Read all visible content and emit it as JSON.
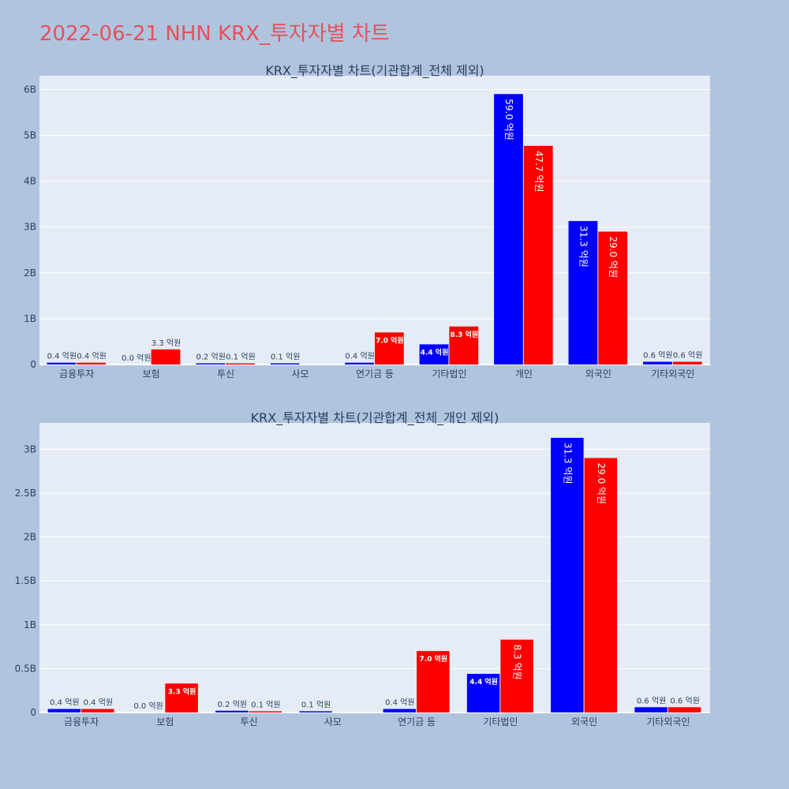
{
  "page_title": "2022-06-21 NHN KRX_투자자별 차트",
  "colors": {
    "buy": "#0000ff",
    "sell": "#ff0000",
    "plot_bg": "#e5ecf6",
    "page_bg": "#b0c4de",
    "title": "#e8505b"
  },
  "chart_data": [
    {
      "type": "bar",
      "title": "KRX_투자자별 차트(기관합계_전체 제외)",
      "categories": [
        "금융투자",
        "보험",
        "투신",
        "사모",
        "연기금 등",
        "기타법인",
        "개인",
        "외국인",
        "기타외국인"
      ],
      "series": [
        {
          "values": [
            0.04,
            0.0,
            0.02,
            0.01,
            0.04,
            0.44,
            5.9,
            3.13,
            0.06
          ],
          "labels": [
            "0.4 억원",
            "0.0 억원",
            "0.2 억원",
            "0.1 억원",
            "0.4 억원",
            "4.4 억원",
            "59.0 억원",
            "31.3 억원",
            "0.6 억원"
          ]
        },
        {
          "values": [
            0.04,
            0.33,
            0.01,
            0,
            0.7,
            0.83,
            4.77,
            2.9,
            0.06
          ],
          "labels": [
            "0.4 억원",
            "3.3 억원",
            "0.1 억원",
            "",
            "7.0 억원",
            "8.3 억원",
            "47.7 억원",
            "29.0 억원",
            "0.6 억원"
          ]
        }
      ],
      "yticks": [
        "0",
        "1B",
        "2B",
        "3B",
        "4B",
        "5B",
        "6B"
      ],
      "ylim": [
        0,
        6.3
      ],
      "grid": true
    },
    {
      "type": "bar",
      "title": "KRX_투자자별 차트(기관합계_전체_개인 제외)",
      "categories": [
        "금융투자",
        "보험",
        "투신",
        "사모",
        "연기금 등",
        "기타법인",
        "외국인",
        "기타외국인"
      ],
      "series": [
        {
          "values": [
            0.04,
            0.0,
            0.02,
            0.01,
            0.04,
            0.44,
            3.13,
            0.06
          ],
          "labels": [
            "0.4 억원",
            "0.0 억원",
            "0.2 억원",
            "0.1 억원",
            "0.4 억원",
            "4.4 억원",
            "31.3 억원",
            "0.6 억원"
          ]
        },
        {
          "values": [
            0.04,
            0.33,
            0.01,
            0,
            0.7,
            0.83,
            2.9,
            0.06
          ],
          "labels": [
            "0.4 억원",
            "3.3 억원",
            "0.1 억원",
            "",
            "7.0 억원",
            "8.3 억원",
            "29.0 억원",
            "0.6 억원"
          ]
        }
      ],
      "yticks": [
        "0",
        "0.5B",
        "1B",
        "1.5B",
        "2B",
        "2.5B",
        "3B"
      ],
      "ylim": [
        0,
        3.3
      ],
      "grid": true
    }
  ]
}
